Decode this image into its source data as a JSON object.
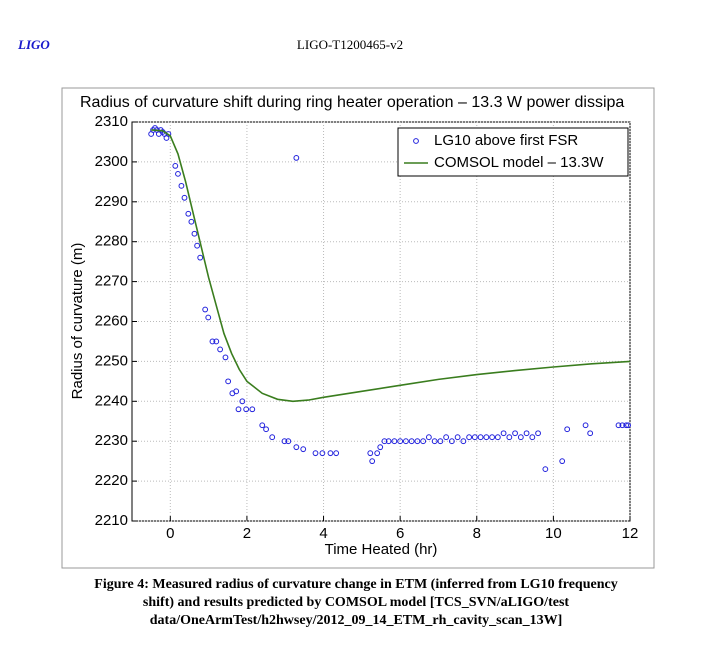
{
  "header": {
    "left": "LIGO",
    "right": "LIGO-T1200465-v2"
  },
  "chart_data": {
    "type": "scatter",
    "title": "Radius of curvature shift during ring heater operation – 13.3 W power dissipa",
    "xlabel": "Time Heated (hr)",
    "ylabel": "Radius of curvature (m)",
    "xlim": [
      -1,
      12
    ],
    "ylim": [
      2210,
      2310
    ],
    "xticks": [
      0,
      2,
      4,
      6,
      8,
      10,
      12
    ],
    "yticks": [
      2210,
      2220,
      2230,
      2240,
      2250,
      2260,
      2270,
      2280,
      2290,
      2300,
      2310
    ],
    "grid": true,
    "legend": "upper right",
    "series": [
      {
        "name": "LG10 above first FSR",
        "color": "#2222dd",
        "type": "scatter",
        "x": [
          -0.5,
          -0.45,
          -0.4,
          -0.35,
          -0.3,
          -0.25,
          -0.2,
          -0.15,
          -0.1,
          -0.05,
          0.13,
          0.2,
          0.29,
          0.37,
          0.47,
          0.55,
          0.63,
          0.7,
          0.78,
          0.91,
          0.99,
          1.1,
          1.2,
          1.3,
          1.44,
          1.51,
          1.62,
          1.72,
          1.78,
          1.88,
          1.98,
          2.14,
          2.4,
          2.5,
          2.66,
          2.98,
          3.08,
          3.29,
          3.47,
          3.79,
          3.97,
          4.18,
          4.33,
          3.29,
          5.22,
          5.27,
          5.4,
          5.48,
          5.59,
          5.7,
          5.85,
          6.0,
          6.15,
          6.3,
          6.45,
          6.6,
          6.75,
          6.9,
          7.05,
          7.2,
          7.35,
          7.5,
          7.65,
          7.8,
          7.95,
          8.1,
          8.25,
          8.4,
          8.55,
          8.7,
          8.85,
          9.0,
          9.15,
          9.3,
          9.45,
          9.6,
          9.79,
          10.23,
          10.36,
          10.84,
          10.96,
          11.7,
          11.8,
          11.9,
          11.95
        ],
        "values": [
          2307,
          2308,
          2308.5,
          2308,
          2307,
          2308,
          2307.5,
          2307,
          2306,
          2307,
          2299,
          2297,
          2294,
          2291,
          2287,
          2285,
          2282,
          2279,
          2276,
          2263,
          2261,
          2255,
          2255,
          2253,
          2251,
          2245,
          2242,
          2242.5,
          2238,
          2240,
          2238,
          2238,
          2234,
          2233,
          2231,
          2230,
          2230,
          2228.5,
          2228,
          2227,
          2227,
          2227,
          2227,
          2301,
          2227,
          2225,
          2227,
          2228.5,
          2230,
          2230,
          2230,
          2230,
          2230,
          2230,
          2230,
          2230,
          2231,
          2230,
          2230,
          2231,
          2230,
          2231,
          2230,
          2231,
          2231,
          2231,
          2231,
          2231,
          2231,
          2232,
          2231,
          2232,
          2231,
          2232,
          2231,
          2232,
          2223,
          2225,
          2233,
          2234,
          2232,
          2234,
          2234,
          2234,
          2234
        ]
      },
      {
        "name": "COMSOL model – 13.3W",
        "color": "#3a7d1e",
        "type": "line",
        "x": [
          -0.5,
          -0.2,
          0,
          0.2,
          0.4,
          0.6,
          0.8,
          1.0,
          1.2,
          1.4,
          1.6,
          1.8,
          2.0,
          2.4,
          2.8,
          3.2,
          3.6,
          4,
          5,
          6,
          7,
          8,
          9,
          10,
          11,
          12
        ],
        "values": [
          2308,
          2307.8,
          2306.5,
          2302,
          2295,
          2287,
          2279,
          2271,
          2264,
          2257,
          2252,
          2248,
          2245,
          2242,
          2240.5,
          2240,
          2240.3,
          2241,
          2242.5,
          2244,
          2245.5,
          2246.7,
          2247.7,
          2248.6,
          2249.4,
          2250
        ]
      }
    ]
  },
  "caption": [
    "Figure 4: Measured radius of curvature change in ETM (inferred from LG10 frequency",
    "shift) and results predicted by COMSOL model [TCS_SVN/aLIGO/test",
    "data/OneArmTest/h2hwsey/2012_09_14_ETM_rh_cavity_scan_13W]"
  ]
}
